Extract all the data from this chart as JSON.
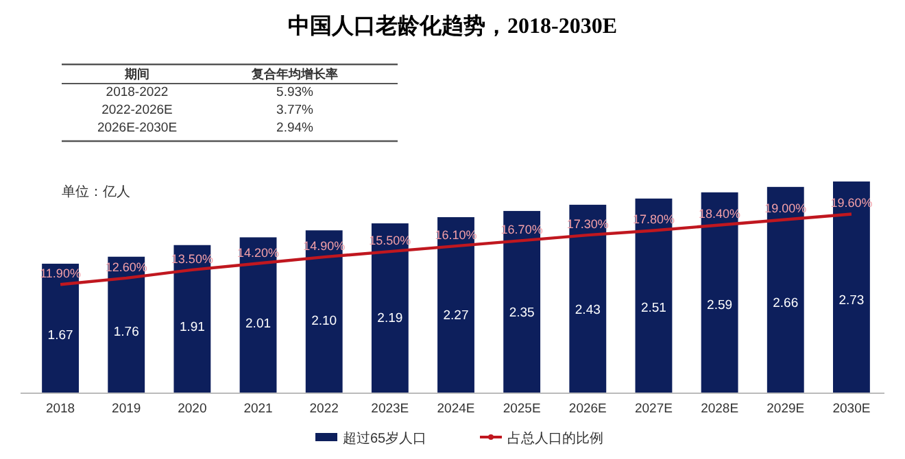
{
  "chart_data": {
    "type": "bar",
    "title": "中国人口老龄化趋势，2018-2030E",
    "categories": [
      "2018",
      "2019",
      "2020",
      "2021",
      "2022",
      "2023E",
      "2024E",
      "2025E",
      "2026E",
      "2027E",
      "2028E",
      "2029E",
      "2030E"
    ],
    "series": [
      {
        "name": "超过65岁人口",
        "color": "#0d1f5c",
        "values": [
          1.67,
          1.76,
          1.91,
          2.01,
          2.1,
          2.19,
          2.27,
          2.35,
          2.43,
          2.51,
          2.59,
          2.66,
          2.73
        ],
        "value_labels": [
          "1.67",
          "1.76",
          "1.91",
          "2.01",
          "2.10",
          "2.19",
          "2.27",
          "2.35",
          "2.43",
          "2.51",
          "2.59",
          "2.66",
          "2.73"
        ]
      },
      {
        "name": "占总人口的比例",
        "type": "line",
        "axis": "y2",
        "color": "#c0171f",
        "values": [
          11.9,
          12.6,
          13.5,
          14.2,
          14.9,
          15.5,
          16.1,
          16.7,
          17.3,
          17.8,
          18.4,
          19.0,
          19.6
        ],
        "value_labels": [
          "11.90%",
          "12.60%",
          "13.50%",
          "14.20%",
          "14.90%",
          "15.50%",
          "16.10%",
          "16.70%",
          "17.30%",
          "17.80%",
          "18.40%",
          "19.00%",
          "19.60%"
        ]
      }
    ],
    "annotations": [
      "期间",
      "复合年均增长率",
      "2018-2022",
      "5.93%",
      "2022-2026E",
      "3.77%",
      "2026E-2030E",
      "2.94%",
      "单位：亿人"
    ],
    "legend": "bottom",
    "tick_labels": "x"
  }
}
